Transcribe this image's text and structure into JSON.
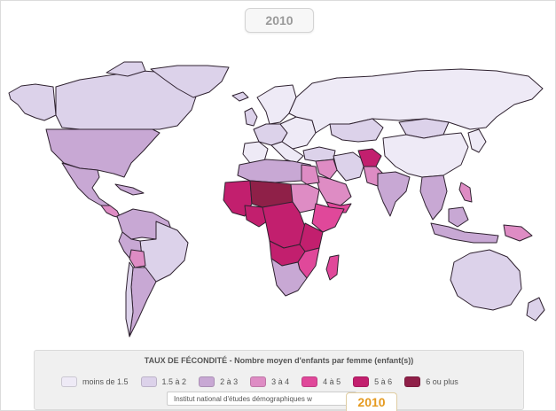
{
  "header": {
    "year": "2010"
  },
  "legend": {
    "title": "TAUX DE FÉCONDITÉ - Nombre moyen d'enfants par femme (enfant(s))",
    "items": [
      {
        "label": "moins de 1.5",
        "color": "#eeeaf6"
      },
      {
        "label": "1.5 à 2",
        "color": "#dcd2ea"
      },
      {
        "label": "2 à 3",
        "color": "#c8a8d4"
      },
      {
        "label": "3 à 4",
        "color": "#de8cc4"
      },
      {
        "label": "4 à 5",
        "color": "#e0489a"
      },
      {
        "label": "5 à 6",
        "color": "#c21f6e"
      },
      {
        "label": "6 ou plus",
        "color": "#8f2048"
      }
    ]
  },
  "footer": {
    "source": "Institut national d'études démographiques w",
    "year_tab": "2010"
  }
}
